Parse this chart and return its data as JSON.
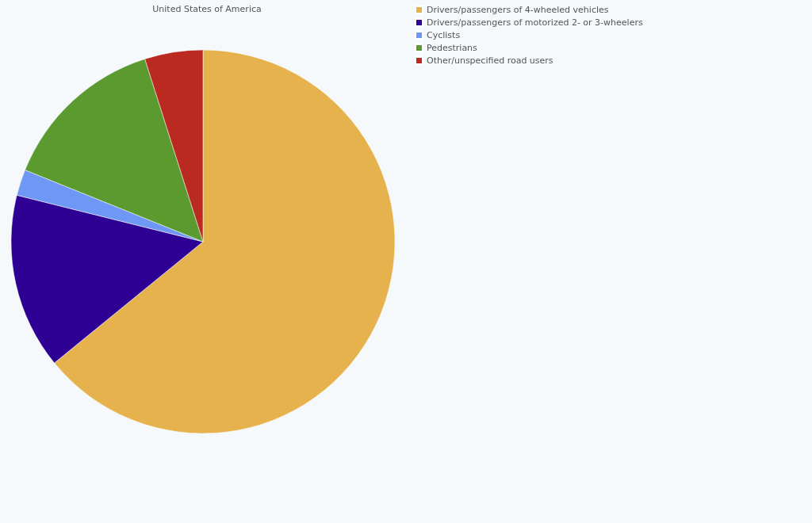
{
  "chart_data": {
    "type": "pie",
    "title": "United States of America",
    "categories": [
      "Drivers/passengers of 4-wheeled vehicles",
      "Drivers/passengers of motorized 2- or 3-wheelers",
      "Cyclists",
      "Pedestrians",
      "Other/unspecified road users"
    ],
    "values": [
      64.1,
      14.8,
      2.2,
      14.0,
      4.9
    ],
    "colors": [
      "#e5b24d",
      "#2e0094",
      "#6f97f5",
      "#5a9a2f",
      "#bb2a20"
    ],
    "legend": "top right"
  }
}
